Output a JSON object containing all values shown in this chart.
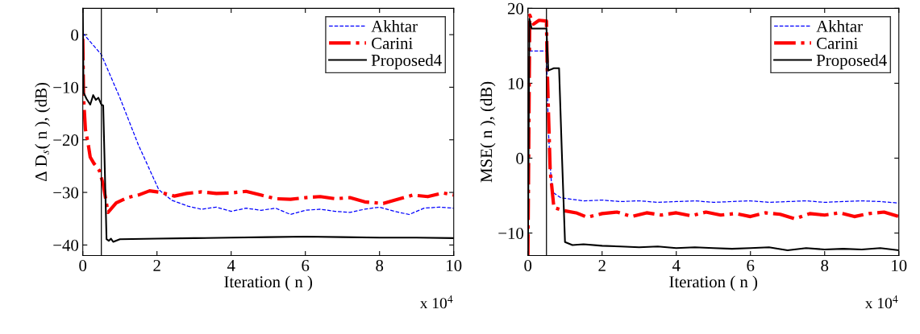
{
  "chart_data": [
    {
      "type": "line",
      "xlabel": "Iteration ( n )",
      "ylabel": "Δ D$_{s}$( n ), (dB)",
      "annotations": [
        "x 10$^{4}$"
      ],
      "xlim": [
        0,
        10
      ],
      "xticks": [
        0,
        2,
        4,
        6,
        8,
        10
      ],
      "ylim": [
        -42,
        5
      ],
      "yticks": [
        -40,
        -30,
        -20,
        -10,
        0
      ],
      "grid": false,
      "legend": "top right",
      "marker": "none",
      "ref_lines": [
        {
          "axis": "x",
          "value": 0.5,
          "color": "#000000"
        }
      ],
      "series": [
        {
          "name": "Akhtar",
          "color": "#0000ff",
          "line_style": "dashed",
          "x": [
            0,
            0.5,
            1,
            1.5,
            2.05,
            2.4,
            2.83,
            3.2,
            3.6,
            4,
            4.4,
            4.8,
            5.2,
            5.6,
            6,
            6.4,
            6.8,
            7.2,
            7.6,
            8,
            8.4,
            8.8,
            9.2,
            9.6,
            10
          ],
          "values": [
            0.3,
            -3.8,
            -12,
            -21,
            -29.5,
            -31.5,
            -32.6,
            -33.2,
            -32.8,
            -33.6,
            -33,
            -33.4,
            -33,
            -34.2,
            -33.4,
            -33.2,
            -33.6,
            -33.8,
            -33.2,
            -32.8,
            -33.6,
            -34.2,
            -33,
            -32.8,
            -33
          ]
        },
        {
          "name": "Carini",
          "color": "#ff0000",
          "line_style": "dashdot",
          "x": [
            0,
            0.02,
            0.07,
            0.15,
            0.2,
            0.3,
            0.45,
            0.55,
            0.68,
            0.9,
            1.2,
            1.5,
            1.8,
            2.1,
            2.47,
            2.8,
            3.2,
            3.6,
            4,
            4.4,
            4.8,
            5.2,
            5.6,
            6,
            6.4,
            6.8,
            7.2,
            7.6,
            8.1,
            8.5,
            8.9,
            9.3,
            9.7,
            10
          ],
          "values": [
            -0.8,
            -11.9,
            -18,
            -21,
            -23.3,
            -24.5,
            -25.9,
            -28.5,
            -33.8,
            -32,
            -31,
            -30.5,
            -29.7,
            -30,
            -30.7,
            -30.2,
            -29.9,
            -30.2,
            -30.1,
            -29.8,
            -30.5,
            -31.2,
            -31.3,
            -31,
            -30.8,
            -31.2,
            -31,
            -31.8,
            -32.1,
            -31.3,
            -30.5,
            -30.8,
            -30.1,
            -30.5
          ]
        },
        {
          "name": "Proposed4",
          "color": "#000000",
          "line_style": "solid",
          "x": [
            0,
            0.02,
            0.1,
            0.2,
            0.28,
            0.35,
            0.42,
            0.5,
            0.55,
            0.64,
            0.7,
            0.76,
            0.82,
            1,
            2,
            3,
            4,
            5,
            6,
            7,
            8,
            9,
            10
          ],
          "values": [
            5,
            -11,
            -12.2,
            -13.3,
            -11.5,
            -12.4,
            -12,
            -13.3,
            -13.5,
            -38.9,
            -39.2,
            -38.8,
            -39.4,
            -38.9,
            -38.8,
            -38.7,
            -38.6,
            -38.5,
            -38.4,
            -38.5,
            -38.6,
            -38.6,
            -38.7
          ]
        }
      ]
    },
    {
      "type": "line",
      "xlabel": "Iteration ( n )",
      "ylabel": "MSE( n ), (dB)",
      "annotations": [
        "x 10$^{4}$"
      ],
      "xlim": [
        0,
        10
      ],
      "xticks": [
        0,
        2,
        4,
        6,
        8,
        10
      ],
      "ylim": [
        -13,
        20
      ],
      "yticks": [
        -10,
        0,
        10,
        20
      ],
      "grid": false,
      "legend": "top right",
      "marker": "none",
      "ref_lines": [
        {
          "axis": "x",
          "value": 0.5,
          "color": "#000000"
        }
      ],
      "series": [
        {
          "name": "Akhtar",
          "color": "#0000ff",
          "line_style": "dashed",
          "x": [
            0.03,
            0.06,
            0.5,
            0.55,
            0.6,
            0.65,
            0.89,
            1.5,
            2,
            2.5,
            3,
            3.5,
            4,
            4.5,
            5,
            5.5,
            6,
            6.5,
            7,
            7.5,
            8,
            8.5,
            9,
            9.5,
            10
          ],
          "values": [
            14.3,
            14.3,
            14.3,
            4,
            -0.9,
            -4.5,
            -5.3,
            -5.7,
            -5.6,
            -5.8,
            -5.7,
            -5.9,
            -5.8,
            -5.7,
            -5.9,
            -5.8,
            -5.7,
            -5.9,
            -5.8,
            -5.7,
            -5.9,
            -5.8,
            -5.7,
            -5.8,
            -6
          ]
        },
        {
          "name": "Carini",
          "color": "#ff0000",
          "line_style": "dashdot",
          "x": [
            0,
            0.05,
            0.15,
            0.3,
            0.5,
            0.52,
            0.56,
            0.6,
            0.7,
            0.95,
            1.3,
            1.6,
            2,
            2.4,
            2.8,
            3.2,
            3.6,
            4,
            4.4,
            4.8,
            5.2,
            5.6,
            6,
            6.4,
            6.8,
            7.2,
            7.6,
            8,
            8.4,
            8.8,
            9.2,
            9.6,
            10
          ],
          "values": [
            -13,
            19.1,
            17.9,
            18.4,
            18.3,
            12.2,
            5.1,
            -1.6,
            -6.6,
            -7,
            -7.3,
            -7.9,
            -7.4,
            -7.2,
            -7.8,
            -7.3,
            -7.6,
            -7.3,
            -7.7,
            -7.2,
            -7.6,
            -7.4,
            -7.8,
            -7.3,
            -7.5,
            -8.1,
            -7.4,
            -7.6,
            -7.3,
            -7.8,
            -7.4,
            -7.2,
            -7.8
          ]
        },
        {
          "name": "Proposed4",
          "color": "#000000",
          "line_style": "solid",
          "x": [
            0,
            0.04,
            0.1,
            0.3,
            0.5,
            0.55,
            0.7,
            0.84,
            0.92,
            1,
            1.2,
            1.5,
            2,
            2.5,
            3,
            3.5,
            4,
            4.5,
            5,
            5.5,
            6,
            6.5,
            7,
            7.5,
            8,
            8.5,
            9,
            9.5,
            10
          ],
          "values": [
            -13,
            18.6,
            17.3,
            17.3,
            17.3,
            11.7,
            12,
            12,
            0,
            -11.2,
            -11.6,
            -11.5,
            -11.7,
            -11.8,
            -11.9,
            -11.8,
            -12,
            -11.9,
            -12,
            -12.1,
            -12,
            -11.9,
            -12.3,
            -12,
            -12.2,
            -12.1,
            -12.2,
            -12,
            -12.3
          ]
        }
      ]
    }
  ]
}
